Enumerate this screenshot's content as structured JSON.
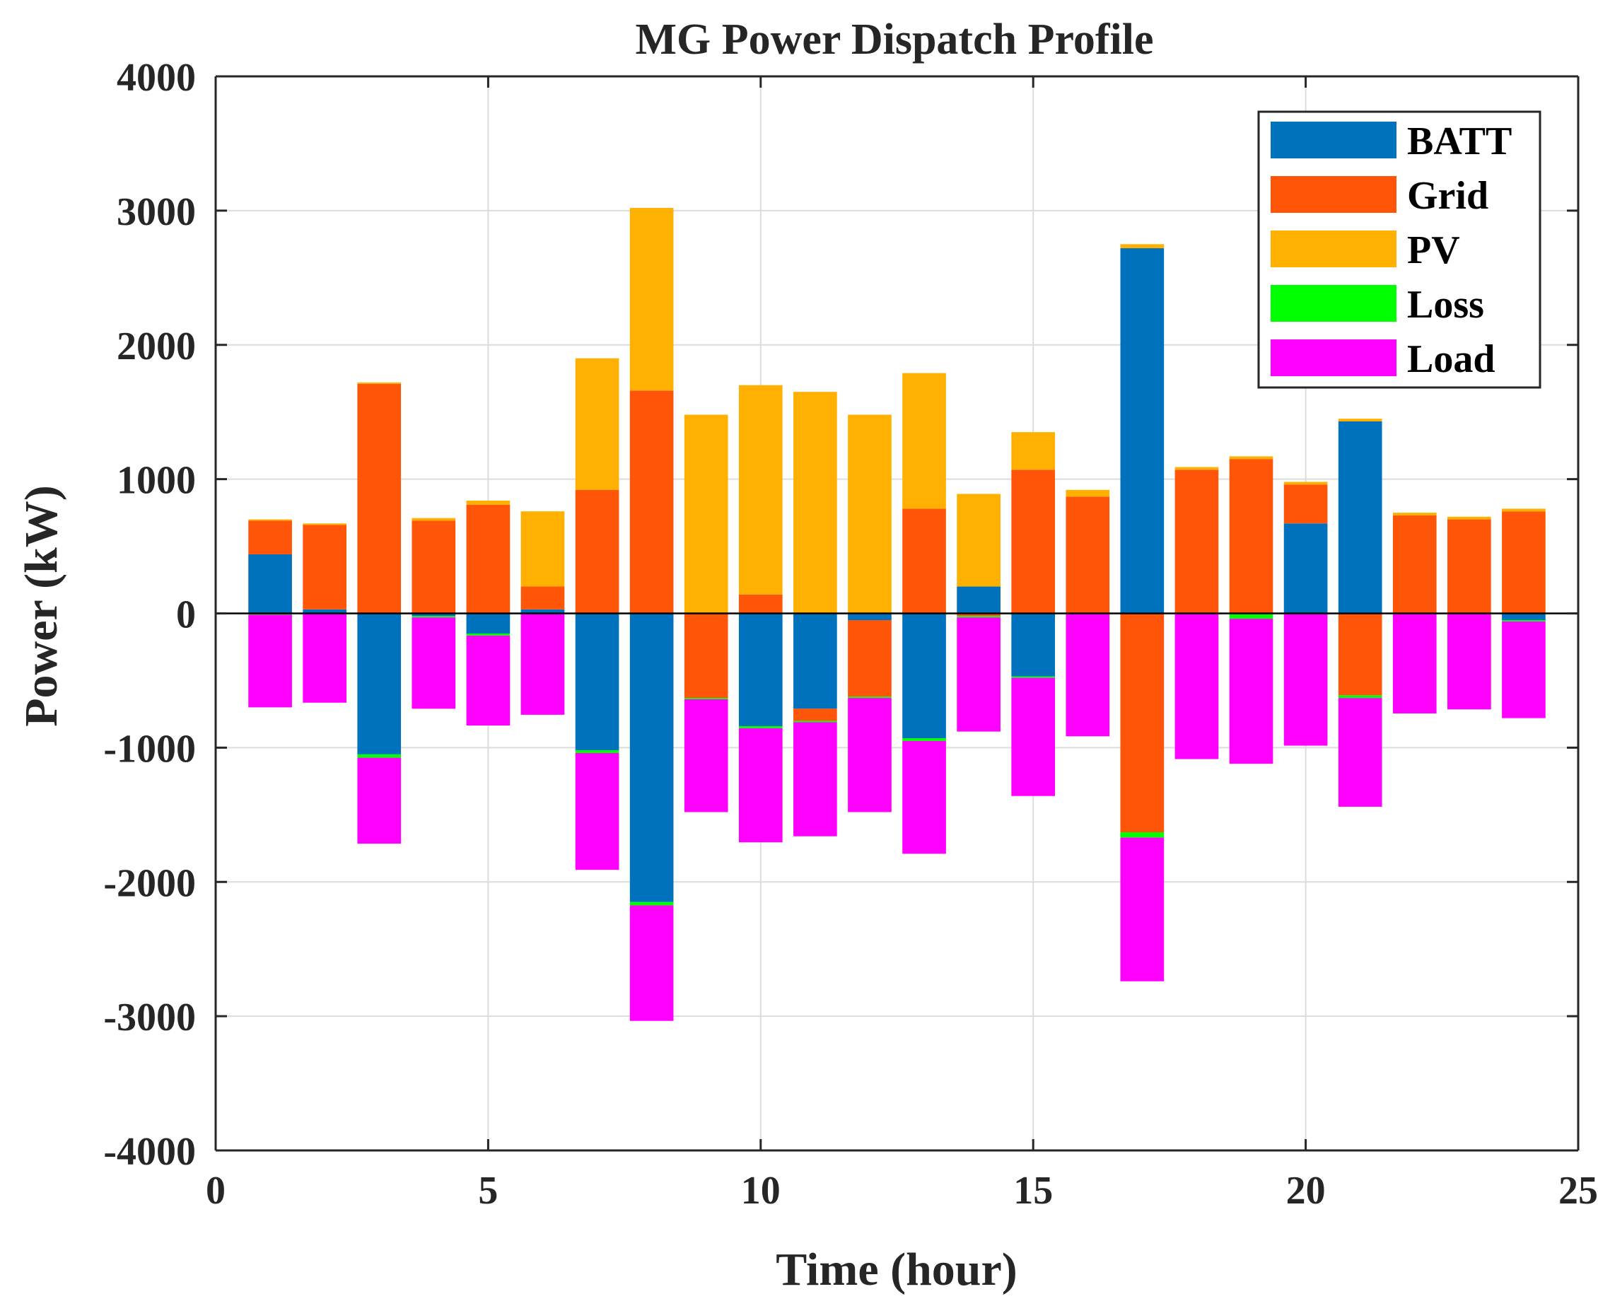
{
  "chart_data": {
    "type": "bar",
    "stacked": true,
    "title": "MG Power Dispatch Profile",
    "xlabel": "Time (hour)",
    "ylabel": "Power (kW)",
    "xlim": [
      0,
      25
    ],
    "ylim": [
      -4000,
      4000
    ],
    "xticks": [
      0,
      5,
      10,
      15,
      20,
      25
    ],
    "yticks": [
      -4000,
      -3000,
      -2000,
      -1000,
      0,
      1000,
      2000,
      3000,
      4000
    ],
    "grid": true,
    "legend_position": "top-right",
    "x": [
      1,
      2,
      3,
      4,
      5,
      6,
      7,
      8,
      9,
      10,
      11,
      12,
      13,
      14,
      15,
      16,
      17,
      18,
      19,
      20,
      21,
      22,
      23,
      24
    ],
    "series": [
      {
        "name": "BATT",
        "color": "#0072BD",
        "values": [
          440,
          30,
          -1050,
          -20,
          -150,
          30,
          -1020,
          -2150,
          0,
          -840,
          -710,
          -50,
          -930,
          200,
          -470,
          0,
          2720,
          0,
          0,
          670,
          1430,
          0,
          0,
          -50
        ]
      },
      {
        "name": "Grid",
        "color": "#FF5508",
        "values": [
          250,
          630,
          1710,
          690,
          810,
          170,
          920,
          1660,
          -630,
          140,
          -90,
          -570,
          780,
          -20,
          1070,
          870,
          -1630,
          1070,
          1150,
          290,
          -610,
          730,
          700,
          760
        ]
      },
      {
        "name": "PV",
        "color": "#FFB000",
        "values": [
          10,
          10,
          10,
          20,
          30,
          560,
          980,
          1360,
          1480,
          1560,
          1650,
          1480,
          1010,
          690,
          280,
          50,
          30,
          20,
          20,
          20,
          20,
          20,
          20,
          20
        ]
      },
      {
        "name": "Loss",
        "color": "#00FF00",
        "values": [
          -10,
          -5,
          -25,
          -10,
          -15,
          -5,
          -20,
          -25,
          -10,
          -15,
          -10,
          -10,
          -20,
          -10,
          -10,
          -5,
          -40,
          -5,
          -40,
          -5,
          -20,
          -5,
          -5,
          -10
        ]
      },
      {
        "name": "Load",
        "color": "#FF00FF",
        "values": [
          -690,
          -660,
          -640,
          -680,
          -670,
          -750,
          -870,
          -860,
          -840,
          -850,
          -850,
          -850,
          -840,
          -850,
          -880,
          -910,
          -1070,
          -1080,
          -1080,
          -980,
          -810,
          -740,
          -710,
          -720
        ]
      }
    ]
  }
}
